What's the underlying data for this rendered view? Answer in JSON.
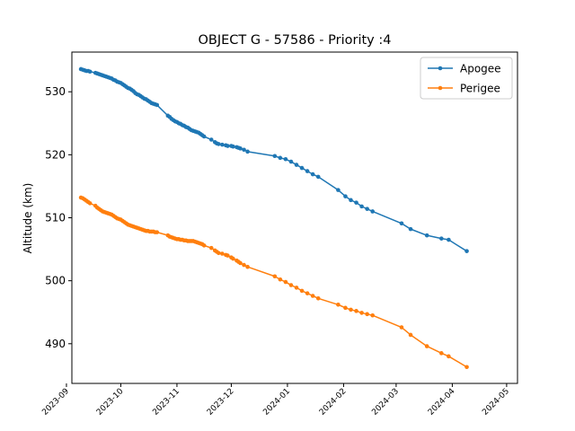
{
  "chart_data": {
    "type": "line",
    "title": "OBJECT G - 57586 - Priority :4",
    "xlabel": "",
    "ylabel": "Altitude (km)",
    "xlim": [
      "2023-09-04",
      "2024-05-07"
    ],
    "ylim": [
      483.7,
      536.3
    ],
    "x_ticks": [
      "2023-09",
      "2023-10",
      "2023-11",
      "2023-12",
      "2024-01",
      "2024-02",
      "2024-03",
      "2024-04",
      "2024-05"
    ],
    "y_ticks": [
      490,
      500,
      510,
      520,
      530
    ],
    "grid": false,
    "legend": "top-right",
    "series": [
      {
        "name": "Apogee",
        "color": "#1f77b4",
        "points": [
          [
            "2023-09-09",
            533.6
          ],
          [
            "2023-09-10",
            533.5
          ],
          [
            "2023-09-11",
            533.4
          ],
          [
            "2023-09-12",
            533.3
          ],
          [
            "2023-09-13",
            533.3
          ],
          [
            "2023-09-14",
            533.2
          ],
          [
            "2023-09-17",
            533.0
          ],
          [
            "2023-09-18",
            532.9
          ],
          [
            "2023-09-19",
            532.8
          ],
          [
            "2023-09-20",
            532.7
          ],
          [
            "2023-09-21",
            532.6
          ],
          [
            "2023-09-22",
            532.5
          ],
          [
            "2023-09-23",
            532.4
          ],
          [
            "2023-09-24",
            532.3
          ],
          [
            "2023-09-25",
            532.2
          ],
          [
            "2023-09-26",
            532.1
          ],
          [
            "2023-09-27",
            531.9
          ],
          [
            "2023-09-28",
            531.8
          ],
          [
            "2023-09-29",
            531.6
          ],
          [
            "2023-09-30",
            531.5
          ],
          [
            "2023-10-01",
            531.4
          ],
          [
            "2023-10-02",
            531.2
          ],
          [
            "2023-10-03",
            531.0
          ],
          [
            "2023-10-04",
            530.8
          ],
          [
            "2023-10-05",
            530.6
          ],
          [
            "2023-10-06",
            530.5
          ],
          [
            "2023-10-07",
            530.3
          ],
          [
            "2023-10-08",
            530.1
          ],
          [
            "2023-10-09",
            529.8
          ],
          [
            "2023-10-10",
            529.6
          ],
          [
            "2023-10-11",
            529.5
          ],
          [
            "2023-10-12",
            529.3
          ],
          [
            "2023-10-13",
            529.1
          ],
          [
            "2023-10-14",
            528.9
          ],
          [
            "2023-10-15",
            528.8
          ],
          [
            "2023-10-16",
            528.6
          ],
          [
            "2023-10-17",
            528.4
          ],
          [
            "2023-10-18",
            528.2
          ],
          [
            "2023-10-19",
            528.1
          ],
          [
            "2023-10-20",
            528.0
          ],
          [
            "2023-10-21",
            527.9
          ],
          [
            "2023-10-27",
            526.2
          ],
          [
            "2023-10-28",
            526.0
          ],
          [
            "2023-10-29",
            525.7
          ],
          [
            "2023-10-30",
            525.5
          ],
          [
            "2023-10-31",
            525.3
          ],
          [
            "2023-11-01",
            525.2
          ],
          [
            "2023-11-02",
            525.0
          ],
          [
            "2023-11-03",
            524.9
          ],
          [
            "2023-11-04",
            524.7
          ],
          [
            "2023-11-05",
            524.6
          ],
          [
            "2023-11-06",
            524.4
          ],
          [
            "2023-11-07",
            524.3
          ],
          [
            "2023-11-08",
            524.1
          ],
          [
            "2023-11-09",
            523.9
          ],
          [
            "2023-11-10",
            523.8
          ],
          [
            "2023-11-11",
            523.7
          ],
          [
            "2023-11-12",
            523.6
          ],
          [
            "2023-11-13",
            523.5
          ],
          [
            "2023-11-14",
            523.3
          ],
          [
            "2023-11-15",
            523.1
          ],
          [
            "2023-11-16",
            522.9
          ],
          [
            "2023-11-20",
            522.4
          ],
          [
            "2023-11-22",
            522.0
          ],
          [
            "2023-11-23",
            521.8
          ],
          [
            "2023-11-24",
            521.7
          ],
          [
            "2023-11-26",
            521.6
          ],
          [
            "2023-11-28",
            521.5
          ],
          [
            "2023-11-29",
            521.4
          ],
          [
            "2023-12-01",
            521.4
          ],
          [
            "2023-12-02",
            521.3
          ],
          [
            "2023-12-04",
            521.2
          ],
          [
            "2023-12-05",
            521.1
          ],
          [
            "2023-12-06",
            521.0
          ],
          [
            "2023-12-08",
            520.8
          ],
          [
            "2023-12-10",
            520.5
          ],
          [
            "2023-12-25",
            519.8
          ],
          [
            "2023-12-28",
            519.5
          ],
          [
            "2023-12-31",
            519.3
          ],
          [
            "2024-01-03",
            518.9
          ],
          [
            "2024-01-06",
            518.4
          ],
          [
            "2024-01-09",
            517.9
          ],
          [
            "2024-01-12",
            517.4
          ],
          [
            "2024-01-15",
            516.9
          ],
          [
            "2024-01-18",
            516.5
          ],
          [
            "2024-01-29",
            514.4
          ],
          [
            "2024-02-02",
            513.4
          ],
          [
            "2024-02-05",
            512.8
          ],
          [
            "2024-02-08",
            512.4
          ],
          [
            "2024-02-11",
            511.8
          ],
          [
            "2024-02-14",
            511.4
          ],
          [
            "2024-02-17",
            511.0
          ],
          [
            "2024-03-04",
            509.1
          ],
          [
            "2024-03-09",
            508.2
          ],
          [
            "2024-03-18",
            507.2
          ],
          [
            "2024-03-26",
            506.7
          ],
          [
            "2024-03-30",
            506.5
          ],
          [
            "2024-04-09",
            504.7
          ]
        ]
      },
      {
        "name": "Perigee",
        "color": "#ff7f0e",
        "points": [
          [
            "2023-09-09",
            513.2
          ],
          [
            "2023-09-10",
            513.1
          ],
          [
            "2023-09-11",
            512.9
          ],
          [
            "2023-09-12",
            512.7
          ],
          [
            "2023-09-13",
            512.5
          ],
          [
            "2023-09-14",
            512.3
          ],
          [
            "2023-09-17",
            511.9
          ],
          [
            "2023-09-18",
            511.6
          ],
          [
            "2023-09-19",
            511.4
          ],
          [
            "2023-09-20",
            511.2
          ],
          [
            "2023-09-21",
            511.0
          ],
          [
            "2023-09-22",
            510.9
          ],
          [
            "2023-09-23",
            510.8
          ],
          [
            "2023-09-24",
            510.7
          ],
          [
            "2023-09-25",
            510.6
          ],
          [
            "2023-09-26",
            510.5
          ],
          [
            "2023-09-27",
            510.3
          ],
          [
            "2023-09-28",
            510.1
          ],
          [
            "2023-09-29",
            509.9
          ],
          [
            "2023-09-30",
            509.8
          ],
          [
            "2023-10-01",
            509.7
          ],
          [
            "2023-10-02",
            509.5
          ],
          [
            "2023-10-03",
            509.3
          ],
          [
            "2023-10-04",
            509.1
          ],
          [
            "2023-10-05",
            508.9
          ],
          [
            "2023-10-06",
            508.8
          ],
          [
            "2023-10-07",
            508.7
          ],
          [
            "2023-10-08",
            508.6
          ],
          [
            "2023-10-09",
            508.5
          ],
          [
            "2023-10-10",
            508.4
          ],
          [
            "2023-10-11",
            508.3
          ],
          [
            "2023-10-12",
            508.2
          ],
          [
            "2023-10-13",
            508.1
          ],
          [
            "2023-10-14",
            508.0
          ],
          [
            "2023-10-15",
            507.9
          ],
          [
            "2023-10-16",
            507.9
          ],
          [
            "2023-10-17",
            507.8
          ],
          [
            "2023-10-18",
            507.8
          ],
          [
            "2023-10-19",
            507.8
          ],
          [
            "2023-10-20",
            507.7
          ],
          [
            "2023-10-21",
            507.7
          ],
          [
            "2023-10-27",
            507.2
          ],
          [
            "2023-10-28",
            507.0
          ],
          [
            "2023-10-29",
            506.9
          ],
          [
            "2023-10-30",
            506.8
          ],
          [
            "2023-10-31",
            506.7
          ],
          [
            "2023-11-01",
            506.6
          ],
          [
            "2023-11-02",
            506.6
          ],
          [
            "2023-11-03",
            506.5
          ],
          [
            "2023-11-04",
            506.5
          ],
          [
            "2023-11-05",
            506.4
          ],
          [
            "2023-11-06",
            506.4
          ],
          [
            "2023-11-07",
            506.3
          ],
          [
            "2023-11-08",
            506.3
          ],
          [
            "2023-11-09",
            506.3
          ],
          [
            "2023-11-10",
            506.3
          ],
          [
            "2023-11-11",
            506.2
          ],
          [
            "2023-11-12",
            506.1
          ],
          [
            "2023-11-13",
            506.0
          ],
          [
            "2023-11-14",
            505.9
          ],
          [
            "2023-11-15",
            505.8
          ],
          [
            "2023-11-16",
            505.6
          ],
          [
            "2023-11-20",
            505.2
          ],
          [
            "2023-11-22",
            504.8
          ],
          [
            "2023-11-23",
            504.6
          ],
          [
            "2023-11-24",
            504.4
          ],
          [
            "2023-11-26",
            504.3
          ],
          [
            "2023-11-28",
            504.1
          ],
          [
            "2023-11-29",
            504.0
          ],
          [
            "2023-12-01",
            503.7
          ],
          [
            "2023-12-02",
            503.5
          ],
          [
            "2023-12-04",
            503.2
          ],
          [
            "2023-12-05",
            503.0
          ],
          [
            "2023-12-06",
            502.8
          ],
          [
            "2023-12-08",
            502.5
          ],
          [
            "2023-12-10",
            502.2
          ],
          [
            "2023-12-25",
            500.7
          ],
          [
            "2023-12-28",
            500.2
          ],
          [
            "2023-12-31",
            499.8
          ],
          [
            "2024-01-03",
            499.3
          ],
          [
            "2024-01-06",
            498.9
          ],
          [
            "2024-01-09",
            498.4
          ],
          [
            "2024-01-12",
            498.0
          ],
          [
            "2024-01-15",
            497.6
          ],
          [
            "2024-01-18",
            497.2
          ],
          [
            "2024-01-29",
            496.2
          ],
          [
            "2024-02-02",
            495.7
          ],
          [
            "2024-02-05",
            495.4
          ],
          [
            "2024-02-08",
            495.2
          ],
          [
            "2024-02-11",
            494.9
          ],
          [
            "2024-02-14",
            494.7
          ],
          [
            "2024-02-17",
            494.5
          ],
          [
            "2024-03-04",
            492.6
          ],
          [
            "2024-03-09",
            491.4
          ],
          [
            "2024-03-18",
            489.6
          ],
          [
            "2024-03-26",
            488.5
          ],
          [
            "2024-03-30",
            488.0
          ],
          [
            "2024-04-09",
            486.3
          ]
        ]
      }
    ]
  }
}
